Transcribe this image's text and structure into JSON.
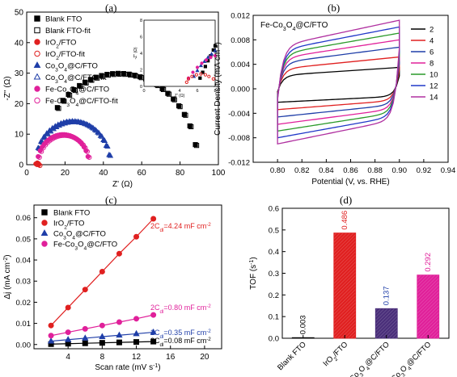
{
  "panel_letters": [
    "(a)",
    "(b)",
    "(c)",
    "(d)"
  ],
  "chart_data": [
    {
      "panel": "(a)",
      "type": "scatter",
      "xlabel": "Z' (Ω)",
      "ylabel": "-Z'' (Ω)",
      "xlim": [
        0,
        100
      ],
      "ylim": [
        0,
        50
      ],
      "xticks": [
        "0",
        "20",
        "40",
        "60",
        "80",
        "100"
      ],
      "yticks": [
        "0",
        "10",
        "20",
        "30",
        "40",
        "50"
      ],
      "legend": [
        {
          "label": "Blank FTO",
          "color": "#000000",
          "marker": "square-filled"
        },
        {
          "label": "Blank FTO-fit",
          "color": "#000000",
          "marker": "square-open"
        },
        {
          "label": "IrO2/FTO",
          "color": "#e02020",
          "marker": "circle-filled"
        },
        {
          "label": "IrO2/FTO-fit",
          "color": "#e02020",
          "marker": "circle-open"
        },
        {
          "label": "Co3O4@C/FTO",
          "color": "#1f3ea8",
          "marker": "triangle-filled"
        },
        {
          "label": "Co3O4@C/FTO-fit",
          "color": "#1f3ea8",
          "marker": "triangle-open"
        },
        {
          "label": "Fe-Co3O4@C/FTO",
          "color": "#e0209a",
          "marker": "circle-filled"
        },
        {
          "label": "Fe-Co3O4@C/FTO-fit",
          "color": "#e0209a",
          "marker": "circle-open"
        }
      ],
      "series": [
        {
          "name": "Blank FTO",
          "center": 48,
          "radius": 41,
          "xmin": 16,
          "xmax": 88
        },
        {
          "name": "Co3O4@C/FTO",
          "center": 24,
          "radius": 19.5,
          "xmin": 6,
          "xmax": 43
        },
        {
          "name": "Fe-Co3O4@C/FTO",
          "center": 19,
          "radius": 13.5,
          "xmin": 6,
          "xmax": 32
        },
        {
          "name": "IrO2/FTO",
          "center": 5.5,
          "radius": 0.8,
          "xmin": 4.8,
          "xmax": 6.3
        }
      ],
      "inset": {
        "xlabel": "Z' (Ω)",
        "ylabel": "-Z'' (Ω)",
        "xlim": [
          0,
          8
        ],
        "ylim": [
          0,
          8
        ],
        "xticks": [
          "0",
          "2",
          "4",
          "6",
          "8"
        ],
        "yticks": [
          "0",
          "2",
          "4",
          "6",
          "8"
        ]
      }
    },
    {
      "panel": "(b)",
      "type": "line",
      "title": "Fe-Co3O4@C/FTO",
      "xlabel": "Potential (V, vs. RHE)",
      "ylabel": "Current Density (mA cm-2)",
      "xlim": [
        0.78,
        0.94
      ],
      "ylim": [
        -0.012,
        0.012
      ],
      "xticks": [
        "0.80",
        "0.82",
        "0.84",
        "0.86",
        "0.88",
        "0.90",
        "0.92",
        "0.94"
      ],
      "yticks": [
        "-0.012",
        "-0.008",
        "-0.004",
        "0.000",
        "0.004",
        "0.008",
        "0.012"
      ],
      "x_range": [
        0.8,
        0.9
      ],
      "legend_position": "right",
      "series": [
        {
          "name": "2",
          "color": "#000000",
          "top": 0.0035,
          "bottom": -0.0022
        },
        {
          "name": "4",
          "color": "#e02020",
          "top": 0.0052,
          "bottom": -0.0034
        },
        {
          "name": "6",
          "color": "#1f3ea8",
          "top": 0.0068,
          "bottom": -0.0046
        },
        {
          "name": "8",
          "color": "#e0209a",
          "top": 0.008,
          "bottom": -0.0058
        },
        {
          "name": "10",
          "color": "#2a9a2a",
          "top": 0.0091,
          "bottom": -0.0069
        },
        {
          "name": "12",
          "color": "#2038c8",
          "top": 0.0101,
          "bottom": -0.008
        },
        {
          "name": "14",
          "color": "#b030a0",
          "top": 0.0112,
          "bottom": -0.009
        }
      ]
    },
    {
      "panel": "(c)",
      "type": "scatter",
      "xlabel": "Scan rate (mV s-1)",
      "ylabel": "Δj (mA cm-2)",
      "xlim": [
        0,
        22
      ],
      "ylim": [
        -0.002,
        0.066
      ],
      "xticks": [
        "4",
        "8",
        "12",
        "16",
        "20"
      ],
      "yticks": [
        "0.00",
        "0.01",
        "0.02",
        "0.03",
        "0.04",
        "0.05",
        "0.06"
      ],
      "x": [
        2,
        4,
        6,
        8,
        10,
        12,
        14
      ],
      "series": [
        {
          "name": "Blank FTO",
          "color": "#000000",
          "marker": "square",
          "values": [
            0.0002,
            0.0004,
            0.0006,
            0.0008,
            0.001,
            0.0012,
            0.0014
          ],
          "annotation": "2Cdl=0.08 mF cm-2"
        },
        {
          "name": "IrO2/FTO",
          "color": "#e02020",
          "marker": "circle",
          "values": [
            0.009,
            0.0175,
            0.026,
            0.0345,
            0.043,
            0.051,
            0.0595
          ],
          "annotation": "2Cdl=4.24 mF cm-2"
        },
        {
          "name": "Co3O4@C/FTO",
          "color": "#1f3ea8",
          "marker": "triangle",
          "values": [
            0.0016,
            0.0023,
            0.003,
            0.0037,
            0.0044,
            0.0051,
            0.0058
          ],
          "annotation": "2Cdl=0.35 mF cm-2"
        },
        {
          "name": "Fe-Co3O4@C/FTO",
          "color": "#e0209a",
          "marker": "circle",
          "values": [
            0.0042,
            0.0058,
            0.0074,
            0.009,
            0.0106,
            0.0122,
            0.014
          ],
          "annotation": "2Cdl=0.80 mF cm-2"
        }
      ]
    },
    {
      "panel": "(d)",
      "type": "bar",
      "xlabel": "",
      "ylabel": "TOF (s-1)",
      "ylim": [
        0.0,
        0.6
      ],
      "yticks": [
        "0.0",
        "0.1",
        "0.2",
        "0.3",
        "0.4",
        "0.5",
        "0.6"
      ],
      "categories": [
        "Blank FTO",
        "IrO2/FTO",
        "Co3O4@C/FTO",
        "Fe-Co3O4@C/FTO"
      ],
      "values": [
        0.003,
        0.486,
        0.137,
        0.292
      ],
      "value_labels": [
        "0.003",
        "0.486",
        "0.137",
        "0.292"
      ],
      "colors": [
        "#000000",
        "#e02020",
        "#4a2f7a",
        "#e0209a"
      ],
      "label_colors": [
        "#000000",
        "#e02020",
        "#1f3ea8",
        "#e0209a"
      ]
    }
  ]
}
